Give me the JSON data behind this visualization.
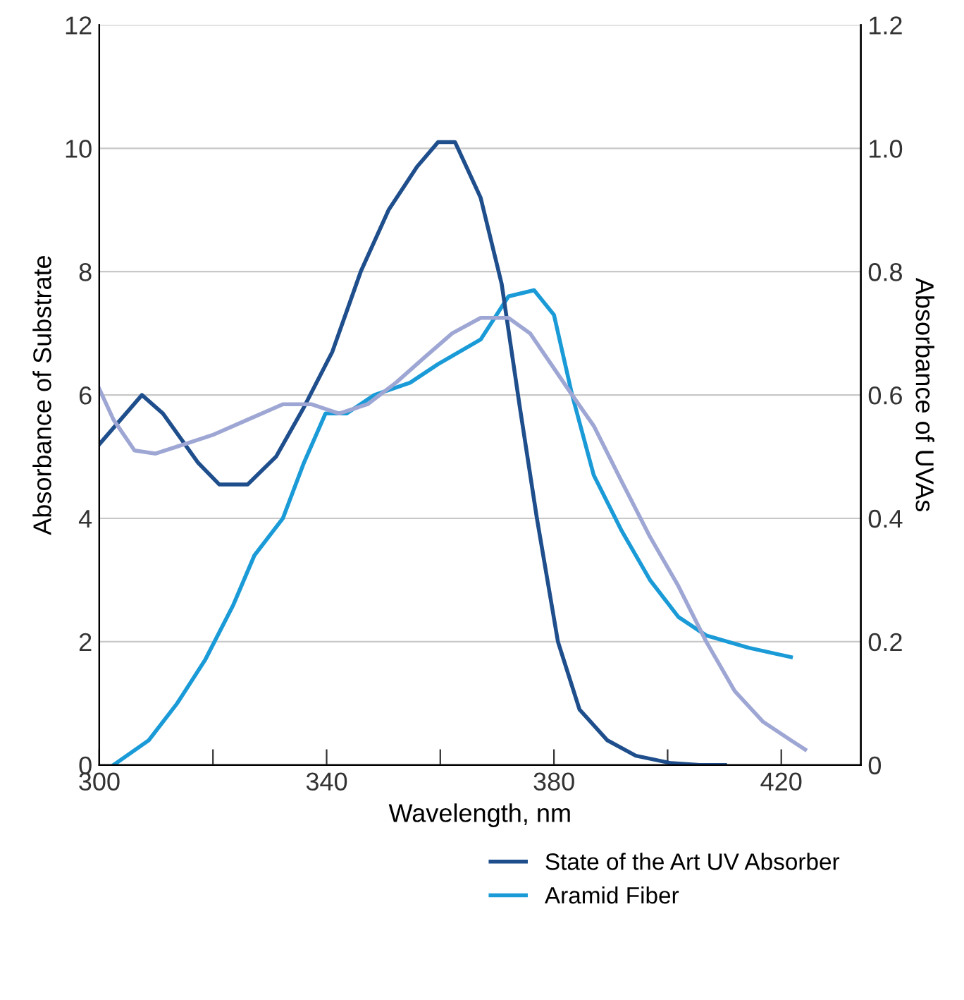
{
  "chart_data": {
    "type": "line",
    "xlabel": "Wavelength, nm",
    "ylabel": "Absorbance of Substrate",
    "y2label": "Absorbance of UVAs",
    "xlim": [
      300,
      434
    ],
    "xticks": [
      300,
      {
        "value": 320,
        "label": null
      },
      340,
      {
        "value": 360,
        "label": null
      },
      380,
      {
        "value": 400,
        "label": null
      },
      420
    ],
    "ylim": [
      0,
      12
    ],
    "yticks": [
      0,
      2,
      4,
      6,
      8,
      10,
      12
    ],
    "y2lim": [
      0,
      1.2
    ],
    "y2ticks": [
      0,
      {
        "value": 0.2,
        "label": "0.2"
      },
      {
        "value": 0.4,
        "label": "0.4"
      },
      {
        "value": 0.6,
        "label": "0.6"
      },
      {
        "value": 0.8,
        "label": "0.8"
      },
      {
        "value": 1.0,
        "label": "1.0"
      },
      {
        "value": 1.2,
        "label": "1.2"
      }
    ],
    "grid": "y",
    "legend": "bottom right",
    "line_style": "solid",
    "marker": "none",
    "series": [
      {
        "name": "State of the Art UV Absorber",
        "color": "#1f4e8c",
        "axis": "y2",
        "x": [
          300,
          307.5,
          311.2,
          317.4,
          321.1,
          326.1,
          331.1,
          336.0,
          341.0,
          346.0,
          350.9,
          355.9,
          359.6,
          362.6,
          367.1,
          370.8,
          374.0,
          377.0,
          380.7,
          384.5,
          389.4,
          394.4,
          400.6,
          405.6,
          410.1
        ],
        "values": [
          0.52,
          0.6,
          0.57,
          0.49,
          0.455,
          0.455,
          0.5,
          0.58,
          0.67,
          0.8,
          0.9,
          0.97,
          1.01,
          1.01,
          0.92,
          0.78,
          0.58,
          0.4,
          0.2,
          0.09,
          0.04,
          0.015,
          0.003,
          0,
          0
        ]
      },
      {
        "color": "#9ea6d4",
        "axis": "y2",
        "x": [
          300,
          302.5,
          306.2,
          309.9,
          314.9,
          319.9,
          326.1,
          332.3,
          337.3,
          342.2,
          347.2,
          352.2,
          357.1,
          362.1,
          367.1,
          372.0,
          375.8,
          379.5,
          383.2,
          387.0,
          391.9,
          396.9,
          401.9,
          406.8,
          411.8,
          416.8,
          421.7,
          424.2
        ],
        "values": [
          0.61,
          0.56,
          0.51,
          0.505,
          0.52,
          0.535,
          0.56,
          0.585,
          0.585,
          0.57,
          0.585,
          0.62,
          0.66,
          0.7,
          0.725,
          0.725,
          0.7,
          0.65,
          0.6,
          0.55,
          0.46,
          0.37,
          0.29,
          0.2,
          0.12,
          0.07,
          0.04,
          0.025
        ]
      },
      {
        "name": "Aramid Fiber",
        "color": "#1a9bd7",
        "x": [
          302.5,
          308.7,
          313.7,
          318.6,
          323.6,
          327.3,
          332.3,
          336.0,
          339.8,
          343.5,
          348.4,
          354.7,
          359.6,
          367.1,
          372.0,
          376.5,
          380.0,
          383.2,
          387.0,
          391.9,
          396.9,
          401.9,
          406.8,
          414.3,
          421.7
        ],
        "values": [
          0,
          0.4,
          1.0,
          1.7,
          2.6,
          3.4,
          4.0,
          4.9,
          5.7,
          5.7,
          6.0,
          6.2,
          6.5,
          6.9,
          7.6,
          7.7,
          7.3,
          6.0,
          4.7,
          3.8,
          3.0,
          2.4,
          2.1,
          1.9,
          1.75
        ]
      }
    ]
  }
}
